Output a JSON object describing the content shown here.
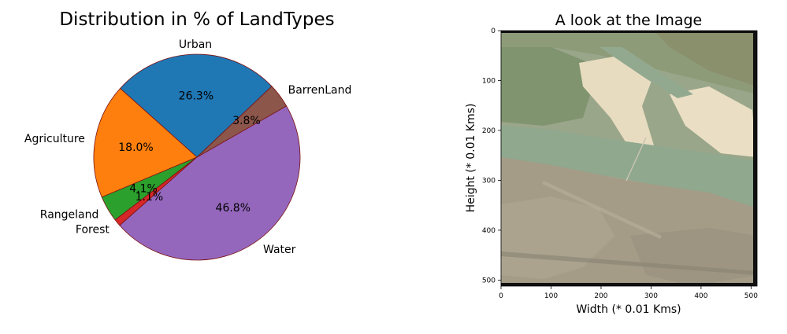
{
  "chart_data": [
    {
      "type": "pie",
      "title": "Distribution in % of LandTypes",
      "categories": [
        "Urban",
        "Agriculture",
        "Rangeland",
        "Forest",
        "Water",
        "BarrenLand"
      ],
      "values": [
        26.3,
        18.0,
        4.1,
        1.1,
        46.8,
        3.8
      ],
      "value_labels": [
        "26.3%",
        "18.0%",
        "4.1%",
        "1.1%",
        "46.8%",
        "3.8%"
      ],
      "colors": [
        "#1f77b4",
        "#ff7f0e",
        "#2ca02c",
        "#d62728",
        "#9467bd",
        "#8c564b"
      ],
      "edge_color": "#7b1111",
      "start_angle_deg": 43.5,
      "direction": "counterclockwise"
    },
    {
      "type": "image",
      "title": "A look at the Image",
      "xlabel": "Width (* 0.01 Kms)",
      "ylabel": "Height (* 0.01 Kms)",
      "xlim": [
        0,
        512
      ],
      "ylim": [
        512,
        0
      ],
      "xticks": [
        "0",
        "100",
        "200",
        "300",
        "400",
        "500"
      ],
      "yticks": [
        "0",
        "100",
        "200",
        "300",
        "400",
        "500"
      ],
      "image_description_icon": "satellite-image",
      "colors": {
        "water": "#8fa88e",
        "sand": "#e8dcc0",
        "urban": "#a49c87",
        "vegetation": "#7f946f"
      }
    }
  ]
}
